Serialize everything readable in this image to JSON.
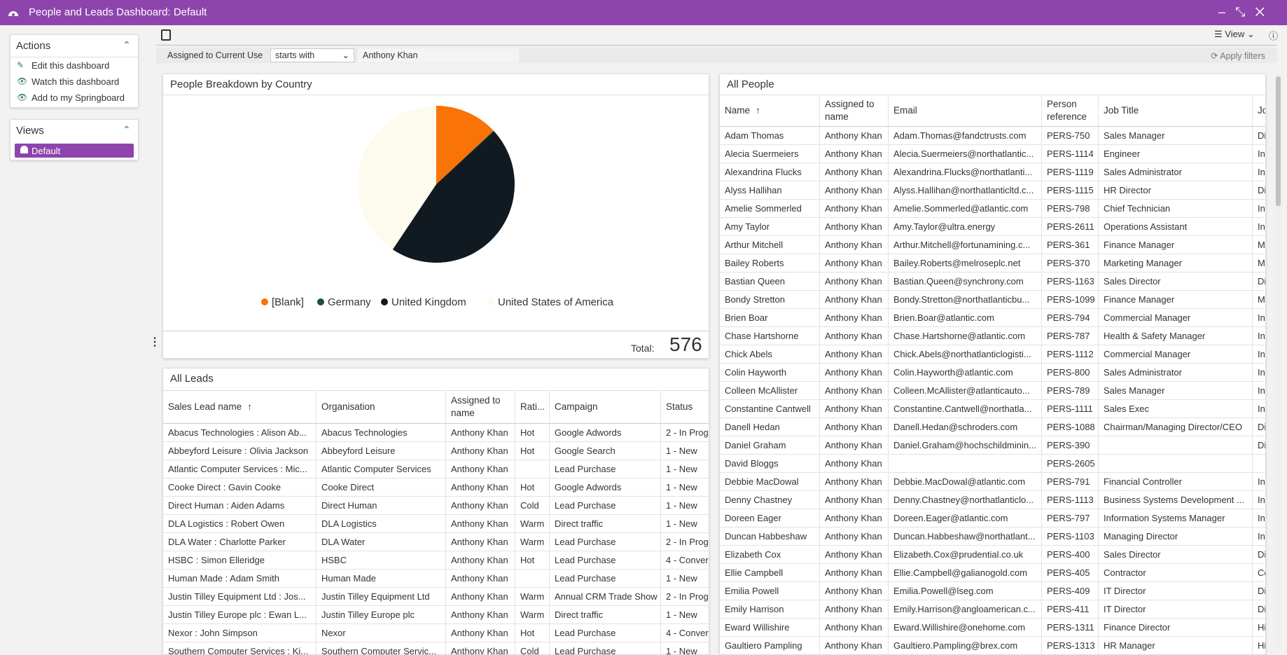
{
  "header": {
    "title": "People and Leads Dashboard: Default"
  },
  "sidebar": {
    "actions_title": "Actions",
    "actions": [
      "Edit this dashboard",
      "Watch this dashboard",
      "Add to my Springboard"
    ],
    "views_title": "Views",
    "views": [
      "Default"
    ]
  },
  "toolbar": {
    "view": "View"
  },
  "filter": {
    "field": "Assigned to Current Use",
    "operator": "starts with",
    "value": "Anthony Khan",
    "apply": "Apply filters"
  },
  "chart_data": {
    "type": "pie",
    "title": "People Breakdown by Country",
    "categories": [
      "[Blank]",
      "Germany",
      "United Kingdom",
      "United States of America"
    ],
    "values": [
      75,
      1,
      266,
      234
    ],
    "colors": [
      "#f97306",
      "#1e4d3b",
      "#121a21",
      "#fdfaee"
    ],
    "total_label": "Total:",
    "total": 576
  },
  "leads": {
    "title": "All Leads",
    "columns": [
      "Sales Lead name",
      "Organisation",
      "Assigned to name",
      "Rati...",
      "Campaign",
      "Status"
    ],
    "rows": [
      [
        "Abacus Technologies : Alison Ab...",
        "Abacus Technologies",
        "Anthony Khan",
        "Hot",
        "Google Adwords",
        "2 - In Prog"
      ],
      [
        "Abbeyford Leisure : Olivia Jackson",
        "Abbeyford Leisure",
        "Anthony Khan",
        "Hot",
        "Google Search",
        "1 - New"
      ],
      [
        "Atlantic Computer Services : Mic...",
        "Atlantic Computer Services",
        "Anthony Khan",
        null,
        "Lead Purchase",
        "1 - New"
      ],
      [
        "Cooke Direct : Gavin Cooke",
        "Cooke Direct",
        "Anthony Khan",
        "Hot",
        "Google Adwords",
        "1 - New"
      ],
      [
        "Direct Human : Aiden Adams",
        "Direct Human",
        "Anthony Khan",
        "Cold",
        "Lead Purchase",
        "1 - New"
      ],
      [
        "DLA Logistics : Robert Owen",
        "DLA Logistics",
        "Anthony Khan",
        "Warm",
        "Direct traffic",
        "1 - New"
      ],
      [
        "DLA Water : Charlotte Parker",
        "DLA Water",
        "Anthony Khan",
        "Warm",
        "Lead Purchase",
        "2 - In Prog"
      ],
      [
        "HSBC : Simon Elleridge",
        "HSBC",
        "Anthony Khan",
        "Hot",
        "Lead Purchase",
        "4 - Conver"
      ],
      [
        "Human Made : Adam Smith",
        "Human Made",
        "Anthony Khan",
        null,
        "Lead Purchase",
        "1 - New"
      ],
      [
        "Justin Tilley Equipment Ltd : Jos...",
        "Justin Tilley Equipment Ltd",
        "Anthony Khan",
        "Warm",
        "Annual CRM Trade Show",
        "2 - In Prog"
      ],
      [
        "Justin Tilley Europe plc : Ewan L...",
        "Justin Tilley Europe plc",
        "Anthony Khan",
        "Warm",
        "Direct traffic",
        "1 - New"
      ],
      [
        "Nexor : John Simpson",
        "Nexor",
        "Anthony Khan",
        "Hot",
        "Lead Purchase",
        "4 - Conver"
      ],
      [
        "Southern Computer Services : Ki...",
        "Southern Computer Servic...",
        "Anthony Khan",
        "Cold",
        "Lead Purchase",
        "1 - New"
      ]
    ]
  },
  "people": {
    "title": "All People",
    "columns": [
      "Name",
      "Assigned to name",
      "Email",
      "Person reference",
      "Job Title",
      "Jo"
    ],
    "rows": [
      [
        "Adam Thomas",
        "Anthony Khan",
        "Adam.Thomas@fandctrusts.com",
        "PERS-750",
        "Sales Manager",
        "Di"
      ],
      [
        "Alecia Suermeiers",
        "Anthony Khan",
        "Alecia.Suermeiers@northatlantic...",
        "PERS-1114",
        "Engineer",
        "In"
      ],
      [
        "Alexandrina Flucks",
        "Anthony Khan",
        "Alexandrina.Flucks@northatlanti...",
        "PERS-1119",
        "Sales Administrator",
        "In"
      ],
      [
        "Alyss Hallihan",
        "Anthony Khan",
        "Alyss.Hallihan@northatlanticltd.c...",
        "PERS-1115",
        "HR Director",
        "Di"
      ],
      [
        "Amelie Sommerled",
        "Anthony Khan",
        "Amelie.Sommerled@atlantic.com",
        "PERS-798",
        "Chief Technician",
        "In"
      ],
      [
        "Amy Taylor",
        "Anthony Khan",
        "Amy.Taylor@ultra.energy",
        "PERS-2611",
        "Operations Assistant",
        "In"
      ],
      [
        "Arthur Mitchell",
        "Anthony Khan",
        "Arthur.Mitchell@fortunamining.c...",
        "PERS-361",
        "Finance Manager",
        "M"
      ],
      [
        "Bailey Roberts",
        "Anthony Khan",
        "Bailey.Roberts@melroseplc.net",
        "PERS-370",
        "Marketing Manager",
        "M"
      ],
      [
        "Bastian Queen",
        "Anthony Khan",
        "Bastian.Queen@synchrony.com",
        "PERS-1163",
        "Sales Director",
        "Di"
      ],
      [
        "Bondy Stretton",
        "Anthony Khan",
        "Bondy.Stretton@northatlanticbu...",
        "PERS-1099",
        "Finance Manager",
        "M"
      ],
      [
        "Brien Boar",
        "Anthony Khan",
        "Brien.Boar@atlantic.com",
        "PERS-794",
        "Commercial Manager",
        "In"
      ],
      [
        "Chase Hartshorne",
        "Anthony Khan",
        "Chase.Hartshorne@atlantic.com",
        "PERS-787",
        "Health & Safety Manager",
        "In"
      ],
      [
        "Chick Abels",
        "Anthony Khan",
        "Chick.Abels@northatlanticlogisti...",
        "PERS-1112",
        "Commercial Manager",
        "In"
      ],
      [
        "Colin Hayworth",
        "Anthony Khan",
        "Colin.Hayworth@atlantic.com",
        "PERS-800",
        "Sales Administrator",
        "In"
      ],
      [
        "Colleen McAllister",
        "Anthony Khan",
        "Colleen.McAllister@atlanticauto...",
        "PERS-789",
        "Sales Manager",
        "In"
      ],
      [
        "Constantine Cantwell",
        "Anthony Khan",
        "Constantine.Cantwell@northatla...",
        "PERS-1111",
        "Sales Exec",
        "In"
      ],
      [
        "Danell Hedan",
        "Anthony Khan",
        "Danell.Hedan@schroders.com",
        "PERS-1088",
        "Chairman/Managing Director/CEO",
        "Di"
      ],
      [
        "Daniel Graham",
        "Anthony Khan",
        "Daniel.Graham@hochschildminin...",
        "PERS-390",
        null,
        "Di"
      ],
      [
        "David Bloggs",
        "Anthony Khan",
        null,
        "PERS-2605",
        null,
        null
      ],
      [
        "Debbie MacDowal",
        "Anthony Khan",
        "Debbie.MacDowal@atlantic.com",
        "PERS-791",
        "Financial Controller",
        "In"
      ],
      [
        "Denny Chastney",
        "Anthony Khan",
        "Denny.Chastney@northatlanticlo...",
        "PERS-1113",
        "Business Systems Development ...",
        "In"
      ],
      [
        "Doreen Eager",
        "Anthony Khan",
        "Doreen.Eager@atlantic.com",
        "PERS-797",
        "Information Systems Manager",
        "In"
      ],
      [
        "Duncan Habbeshaw",
        "Anthony Khan",
        "Duncan.Habbeshaw@northatlant...",
        "PERS-1103",
        "Managing Director",
        "In"
      ],
      [
        "Elizabeth Cox",
        "Anthony Khan",
        "Elizabeth.Cox@prudential.co.uk",
        "PERS-400",
        "Sales Director",
        "Di"
      ],
      [
        "Ellie Campbell",
        "Anthony Khan",
        "Ellie.Campbell@galianogold.com",
        "PERS-405",
        "Contractor",
        "Co"
      ],
      [
        "Emilia Powell",
        "Anthony Khan",
        "Emilia.Powell@lseg.com",
        "PERS-409",
        "IT Director",
        "Di"
      ],
      [
        "Emily Harrison",
        "Anthony Khan",
        "Emily.Harrison@angloamerican.c...",
        "PERS-411",
        "IT Director",
        "Di"
      ],
      [
        "Eward Willishire",
        "Anthony Khan",
        "Eward.Willishire@onehome.com",
        "PERS-1311",
        "Finance Director",
        "Hi"
      ],
      [
        "Gaultiero Pampling",
        "Anthony Khan",
        "Gaultiero.Pampling@brex.com",
        "PERS-1313",
        "HR Manager",
        "Hi"
      ]
    ]
  }
}
